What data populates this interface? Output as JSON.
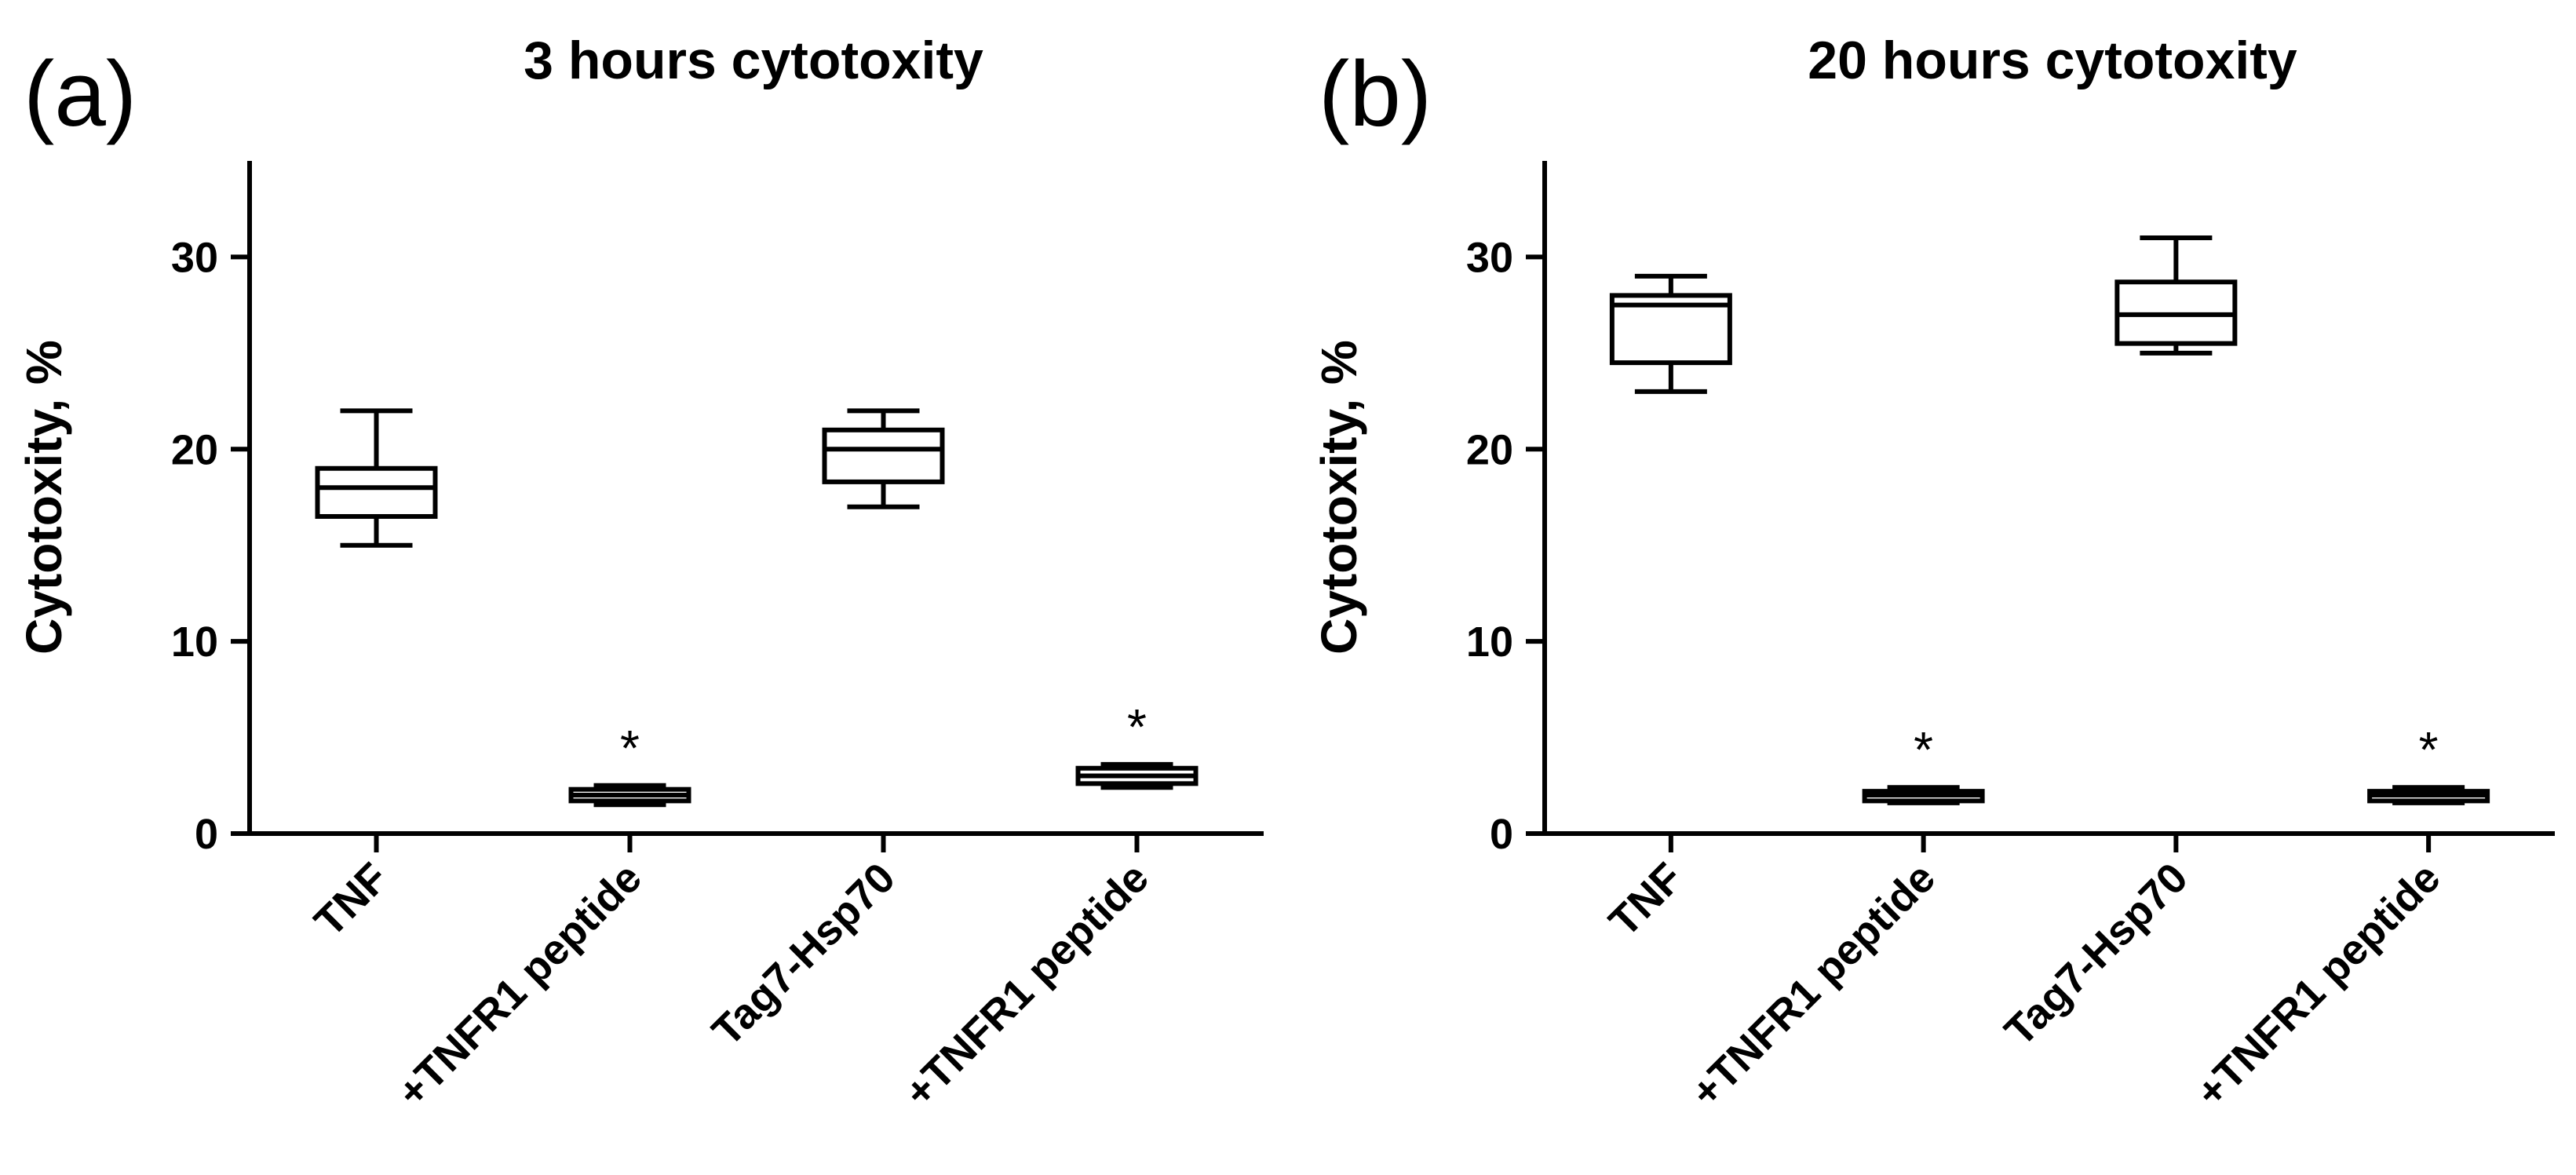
{
  "chart_data": [
    {
      "type": "box",
      "panel": "(a)",
      "title": "3 hours cytotoxity",
      "xlabel": "",
      "ylabel": "Cytotoxity, %",
      "ylim": [
        0,
        35
      ],
      "yticks": [
        0,
        10,
        20,
        30
      ],
      "categories": [
        "TNF",
        "+TNFR1 peptide",
        "Tag7-Hsp70",
        "+TNFR1 peptide"
      ],
      "boxes": [
        {
          "min": 15,
          "q1": 16.5,
          "median": 18,
          "q3": 19,
          "max": 22,
          "annotation": ""
        },
        {
          "min": 1.5,
          "q1": 1.7,
          "median": 2,
          "q3": 2.3,
          "max": 2.5,
          "annotation": "*"
        },
        {
          "min": 17,
          "q1": 18.3,
          "median": 20,
          "q3": 21,
          "max": 22,
          "annotation": ""
        },
        {
          "min": 2.4,
          "q1": 2.6,
          "median": 3,
          "q3": 3.4,
          "max": 3.6,
          "annotation": "*"
        }
      ]
    },
    {
      "type": "box",
      "panel": "(b)",
      "title": "20 hours cytotoxity",
      "xlabel": "",
      "ylabel": "Cytotoxity, %",
      "ylim": [
        0,
        35
      ],
      "yticks": [
        0,
        10,
        20,
        30
      ],
      "categories": [
        "TNF",
        "+TNFR1 peptide",
        "Tag7-Hsp70",
        "+TNFR1 peptide"
      ],
      "boxes": [
        {
          "min": 23,
          "q1": 24.5,
          "median": 27.5,
          "q3": 28,
          "max": 29,
          "annotation": ""
        },
        {
          "min": 1.6,
          "q1": 1.7,
          "median": 2,
          "q3": 2.2,
          "max": 2.4,
          "annotation": "*"
        },
        {
          "min": 25,
          "q1": 25.5,
          "median": 27,
          "q3": 28.7,
          "max": 31,
          "annotation": ""
        },
        {
          "min": 1.6,
          "q1": 1.7,
          "median": 2,
          "q3": 2.2,
          "max": 2.4,
          "annotation": "*"
        }
      ]
    }
  ]
}
